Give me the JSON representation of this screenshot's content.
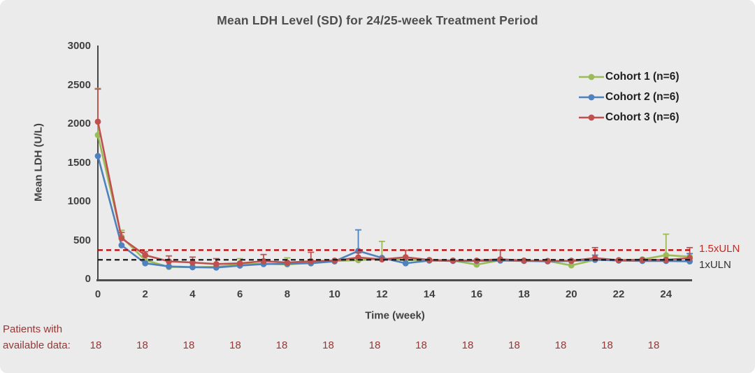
{
  "colors": {
    "background": "#EBEBEB",
    "title_text": "#4d4d4d",
    "axis_text": "#404040",
    "y_axis_line": "#1f1f1f",
    "x_axis_line": "#4d4d4d",
    "footer_text": "#953735",
    "cohort1": "#9BBB59",
    "cohort2": "#4F81BD",
    "cohort3": "#C0504D",
    "uln_red": "#C00000",
    "uln_black": "#1a1a1a"
  },
  "chart_data": {
    "type": "line",
    "title": "Mean LDH Level (SD) for 24/25-week Treatment Period",
    "xlabel": "Time (week)",
    "ylabel": "Mean LDH (U/L)",
    "xlim": [
      0,
      25.1
    ],
    "ylim": [
      0,
      3000
    ],
    "x_ticks": [
      0,
      2,
      4,
      6,
      8,
      10,
      12,
      14,
      16,
      18,
      20,
      22,
      24
    ],
    "y_ticks": [
      0,
      500,
      1000,
      1500,
      2000,
      2500,
      3000
    ],
    "grid": false,
    "legend_position": "inside-top-right",
    "error_bars": "upper SD caps",
    "x": [
      0,
      1,
      2,
      3,
      4,
      5,
      6,
      7,
      8,
      9,
      10,
      11,
      12,
      13,
      14,
      15,
      16,
      17,
      18,
      19,
      20,
      21,
      22,
      23,
      24,
      25
    ],
    "series": [
      {
        "name": "Cohort 1 (n=6)",
        "color": "#9BBB59",
        "values": [
          1856,
          545,
          245,
          158,
          155,
          160,
          190,
          200,
          190,
          212,
          235,
          245,
          262,
          248,
          245,
          240,
          188,
          245,
          240,
          235,
          178,
          250,
          245,
          255,
          310,
          290
        ],
        "sd_upper": [
          600,
          85,
          0,
          0,
          0,
          0,
          75,
          0,
          85,
          0,
          0,
          0,
          225,
          0,
          0,
          0,
          0,
          0,
          0,
          0,
          0,
          0,
          0,
          0,
          270,
          0
        ]
      },
      {
        "name": "Cohort 2 (n=6)",
        "color": "#4F81BD",
        "values": [
          1586,
          437,
          205,
          165,
          155,
          150,
          175,
          195,
          200,
          205,
          230,
          365,
          275,
          205,
          240,
          235,
          235,
          240,
          235,
          230,
          235,
          250,
          240,
          235,
          235,
          230
        ],
        "sd_upper": [
          0,
          0,
          0,
          0,
          0,
          0,
          0,
          0,
          0,
          0,
          0,
          270,
          0,
          0,
          0,
          0,
          0,
          0,
          0,
          0,
          0,
          60,
          0,
          0,
          0,
          100
        ]
      },
      {
        "name": "Cohort 3 (n=6)",
        "color": "#C0504D",
        "values": [
          2028,
          527,
          310,
          230,
          215,
          195,
          205,
          233,
          215,
          232,
          240,
          280,
          255,
          283,
          248,
          240,
          240,
          257,
          240,
          235,
          238,
          272,
          245,
          250,
          250,
          272
        ],
        "sd_upper": [
          420,
          75,
          45,
          70,
          70,
          70,
          0,
          85,
          0,
          115,
          0,
          60,
          0,
          90,
          0,
          0,
          0,
          118,
          0,
          0,
          0,
          135,
          0,
          0,
          0,
          135
        ]
      }
    ],
    "ref_lines": [
      {
        "label": "1.5xULN",
        "value": 375,
        "color": "#C00000",
        "label_color": "#C52A21"
      },
      {
        "label": "1xULN",
        "value": 250,
        "color": "#1a1a1a",
        "label_color": "#333333"
      }
    ]
  },
  "patients": {
    "label_line1": "Patients with",
    "label_line2": "available data:",
    "values": [
      "18",
      "18",
      "18",
      "18",
      "18",
      "18",
      "18",
      "18",
      "18",
      "18",
      "18",
      "18",
      "18"
    ]
  }
}
